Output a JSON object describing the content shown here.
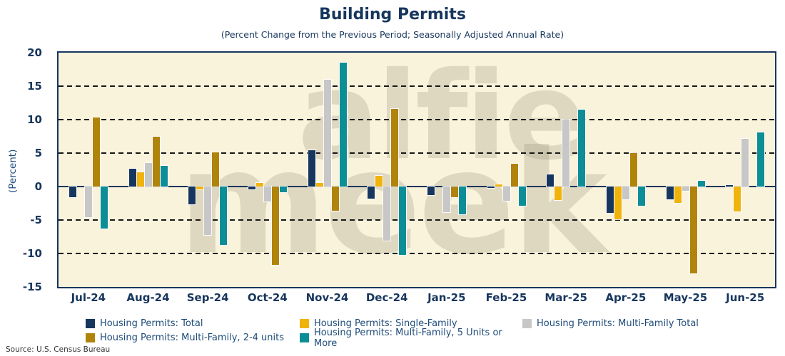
{
  "title": "Building Permits",
  "subtitle": "(Percent Change from the Previous Period; Seasonally Adjusted Annual Rate)",
  "source": "Source: U.S. Census Bureau",
  "watermark": {
    "line1": "alfie",
    "line2": "meek"
  },
  "colors": {
    "plot_background": "#FAF3DC",
    "axis": "#17365D",
    "title_text": "#17365D",
    "legend_text": "#1E4B7A"
  },
  "chart_data": {
    "type": "bar",
    "title": "Building Permits",
    "xlabel": "",
    "ylabel": "(Percent)",
    "ylim": [
      -15,
      20
    ],
    "yticks": [
      20,
      15,
      10,
      5,
      0,
      -5,
      -10,
      -15
    ],
    "gridlines_dashed": [
      15,
      10,
      5,
      -5,
      -10
    ],
    "grid": true,
    "legend_position": "bottom",
    "categories": [
      "Jul-24",
      "Aug-24",
      "Sep-24",
      "Oct-24",
      "Nov-24",
      "Dec-24",
      "Jan-25",
      "Feb-25",
      "Mar-25",
      "Apr-25",
      "May-25",
      "Jun-25"
    ],
    "series": [
      {
        "name": "Housing Permits: Total",
        "color": "#17365D",
        "values": [
          -1.6,
          2.7,
          -2.7,
          -0.4,
          5.4,
          -1.8,
          -1.3,
          -0.2,
          1.8,
          -3.9,
          -1.9,
          0.2
        ]
      },
      {
        "name": "Housing Permits: Single-Family",
        "color": "#EFB30B",
        "values": [
          0,
          2.1,
          -0.4,
          0.5,
          0.5,
          1.6,
          0,
          0.3,
          -2.0,
          -4.9,
          -2.4,
          -3.7
        ]
      },
      {
        "name": "Housing Permits: Multi-Family Total",
        "color": "#C7C7C7",
        "values": [
          -4.6,
          3.5,
          -7.2,
          -2.2,
          16.0,
          -8.1,
          -3.8,
          -2.1,
          10.0,
          -1.9,
          -0.6,
          7.1
        ]
      },
      {
        "name": "Housing Permits: Multi-Family, 2-4 units",
        "color": "#B0830A",
        "values": [
          10.3,
          7.4,
          5.1,
          -11.7,
          -3.6,
          11.6,
          -1.6,
          3.4,
          0,
          5.0,
          -13.0,
          0
        ]
      },
      {
        "name": "Housing Permits: Multi-Family, 5 Units or More",
        "color": "#0D8E96",
        "values": [
          -6.3,
          3.1,
          -8.7,
          -0.9,
          18.5,
          -10.2,
          -4.1,
          -2.9,
          11.5,
          -2.9,
          0.9,
          8.1
        ]
      }
    ]
  }
}
